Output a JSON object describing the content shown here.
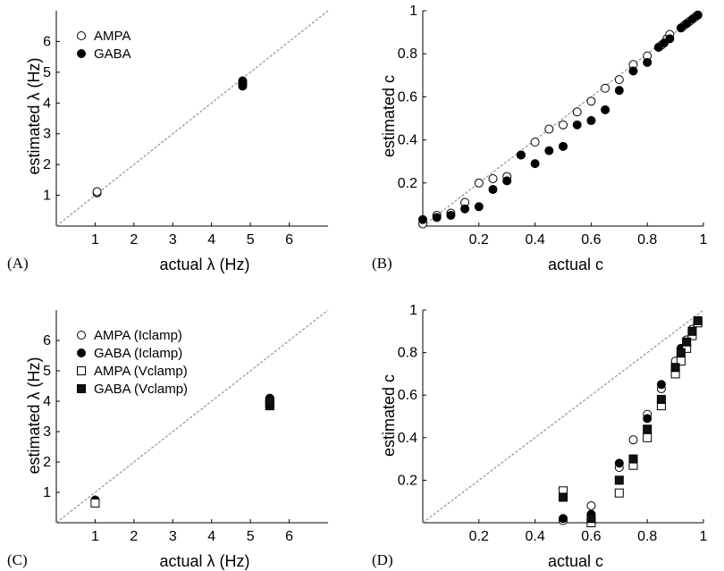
{
  "chart_data": [
    {
      "panel": "(A)",
      "type": "scatter",
      "xlabel": "actual λ (Hz)",
      "ylabel": "estimated λ (Hz)",
      "xlim": [
        0,
        7
      ],
      "ylim": [
        0,
        7
      ],
      "xticks": [
        "1",
        "2",
        "3",
        "4",
        "5",
        "6"
      ],
      "yticks": [
        "1",
        "2",
        "3",
        "4",
        "5",
        "6"
      ],
      "diagonal": true,
      "legend_position": "top-left",
      "series": [
        {
          "name": "AMPA",
          "marker": "open-circle",
          "points": [
            [
              1.05,
              1.08
            ],
            [
              1.05,
              1.12
            ],
            [
              4.8,
              4.6
            ]
          ]
        },
        {
          "name": "GABA",
          "marker": "filled-circle",
          "points": [
            [
              4.8,
              4.55
            ],
            [
              4.8,
              4.62
            ],
            [
              4.8,
              4.68
            ],
            [
              4.8,
              4.72
            ]
          ]
        }
      ]
    },
    {
      "panel": "(B)",
      "type": "scatter",
      "xlabel": "actual c",
      "ylabel": "estimated c",
      "xlim": [
        0,
        1
      ],
      "ylim": [
        0,
        1
      ],
      "xticks": [
        "0.2",
        "0.4",
        "0.6",
        "0.8",
        "1"
      ],
      "yticks": [
        "0.2",
        "0.4",
        "0.6",
        "0.8",
        "1"
      ],
      "diagonal": true,
      "series": [
        {
          "name": "",
          "marker": "open-circle",
          "points": [
            [
              0.0,
              0.01
            ],
            [
              0.05,
              0.05
            ],
            [
              0.1,
              0.06
            ],
            [
              0.15,
              0.11
            ],
            [
              0.2,
              0.2
            ],
            [
              0.25,
              0.22
            ],
            [
              0.3,
              0.23
            ],
            [
              0.35,
              0.33
            ],
            [
              0.4,
              0.39
            ],
            [
              0.45,
              0.45
            ],
            [
              0.5,
              0.47
            ],
            [
              0.55,
              0.53
            ],
            [
              0.6,
              0.58
            ],
            [
              0.65,
              0.64
            ],
            [
              0.7,
              0.68
            ],
            [
              0.75,
              0.75
            ],
            [
              0.8,
              0.79
            ],
            [
              0.85,
              0.84
            ],
            [
              0.87,
              0.87
            ],
            [
              0.88,
              0.89
            ],
            [
              0.93,
              0.93
            ],
            [
              0.95,
              0.95
            ],
            [
              0.97,
              0.97
            ],
            [
              0.98,
              0.98
            ]
          ]
        },
        {
          "name": "",
          "marker": "filled-circle",
          "points": [
            [
              0.0,
              0.03
            ],
            [
              0.05,
              0.04
            ],
            [
              0.1,
              0.05
            ],
            [
              0.15,
              0.08
            ],
            [
              0.2,
              0.09
            ],
            [
              0.25,
              0.17
            ],
            [
              0.3,
              0.21
            ],
            [
              0.35,
              0.33
            ],
            [
              0.4,
              0.29
            ],
            [
              0.45,
              0.35
            ],
            [
              0.5,
              0.37
            ],
            [
              0.55,
              0.47
            ],
            [
              0.6,
              0.49
            ],
            [
              0.65,
              0.54
            ],
            [
              0.7,
              0.63
            ],
            [
              0.75,
              0.72
            ],
            [
              0.8,
              0.76
            ],
            [
              0.84,
              0.83
            ],
            [
              0.86,
              0.85
            ],
            [
              0.88,
              0.87
            ],
            [
              0.92,
              0.92
            ],
            [
              0.94,
              0.94
            ],
            [
              0.96,
              0.96
            ],
            [
              0.98,
              0.98
            ]
          ]
        }
      ]
    },
    {
      "panel": "(C)",
      "type": "scatter",
      "xlabel": "actual λ (Hz)",
      "ylabel": "estimated λ (Hz)",
      "xlim": [
        0,
        7
      ],
      "ylim": [
        0,
        7
      ],
      "xticks": [
        "1",
        "2",
        "3",
        "4",
        "5",
        "6"
      ],
      "yticks": [
        "1",
        "2",
        "3",
        "4",
        "5",
        "6"
      ],
      "diagonal": true,
      "legend_position": "top-left",
      "series": [
        {
          "name": "AMPA (Iclamp)",
          "marker": "open-circle",
          "points": [
            [
              1.0,
              0.75
            ],
            [
              1.0,
              0.7
            ],
            [
              5.5,
              4.0
            ]
          ]
        },
        {
          "name": "GABA (Iclamp)",
          "marker": "filled-circle",
          "points": [
            [
              1.0,
              0.72
            ],
            [
              5.5,
              4.05
            ],
            [
              5.5,
              3.95
            ],
            [
              5.5,
              4.1
            ]
          ]
        },
        {
          "name": "AMPA (Vclamp)",
          "marker": "open-square",
          "points": [
            [
              1.0,
              0.65
            ],
            [
              5.5,
              3.9
            ]
          ]
        },
        {
          "name": "GABA (Vclamp)",
          "marker": "filled-square",
          "points": [
            [
              5.5,
              3.85
            ],
            [
              5.5,
              3.92
            ],
            [
              5.5,
              4.0
            ]
          ]
        }
      ]
    },
    {
      "panel": "(D)",
      "type": "scatter",
      "xlabel": "actual c",
      "ylabel": "estimated c",
      "xlim": [
        0,
        1
      ],
      "ylim": [
        0,
        1
      ],
      "xticks": [
        "0.2",
        "0.4",
        "0.6",
        "0.8",
        "1"
      ],
      "yticks": [
        "0.2",
        "0.4",
        "0.6",
        "0.8",
        "1"
      ],
      "diagonal": true,
      "series": [
        {
          "name": "",
          "marker": "open-circle",
          "points": [
            [
              0.5,
              0.01
            ],
            [
              0.6,
              0.08
            ],
            [
              0.7,
              0.26
            ],
            [
              0.75,
              0.39
            ],
            [
              0.8,
              0.51
            ],
            [
              0.85,
              0.63
            ],
            [
              0.9,
              0.76
            ],
            [
              0.92,
              0.8
            ],
            [
              0.94,
              0.86
            ],
            [
              0.96,
              0.91
            ],
            [
              0.98,
              0.94
            ]
          ]
        },
        {
          "name": "",
          "marker": "filled-circle",
          "points": [
            [
              0.5,
              0.02
            ],
            [
              0.6,
              0.04
            ],
            [
              0.7,
              0.28
            ],
            [
              0.75,
              0.3
            ],
            [
              0.8,
              0.49
            ],
            [
              0.85,
              0.65
            ],
            [
              0.9,
              0.73
            ],
            [
              0.92,
              0.82
            ],
            [
              0.94,
              0.84
            ],
            [
              0.96,
              0.9
            ],
            [
              0.98,
              0.95
            ]
          ]
        },
        {
          "name": "",
          "marker": "open-square",
          "points": [
            [
              0.5,
              0.15
            ],
            [
              0.6,
              0.0
            ],
            [
              0.7,
              0.14
            ],
            [
              0.75,
              0.27
            ],
            [
              0.8,
              0.4
            ],
            [
              0.85,
              0.55
            ],
            [
              0.9,
              0.7
            ],
            [
              0.92,
              0.76
            ],
            [
              0.94,
              0.82
            ],
            [
              0.96,
              0.88
            ],
            [
              0.98,
              0.94
            ]
          ]
        },
        {
          "name": "",
          "marker": "filled-square",
          "points": [
            [
              0.5,
              0.12
            ],
            [
              0.6,
              0.02
            ],
            [
              0.7,
              0.2
            ],
            [
              0.75,
              0.3
            ],
            [
              0.8,
              0.44
            ],
            [
              0.85,
              0.58
            ],
            [
              0.9,
              0.73
            ],
            [
              0.92,
              0.8
            ],
            [
              0.94,
              0.85
            ],
            [
              0.96,
              0.9
            ],
            [
              0.98,
              0.95
            ]
          ]
        }
      ]
    }
  ]
}
